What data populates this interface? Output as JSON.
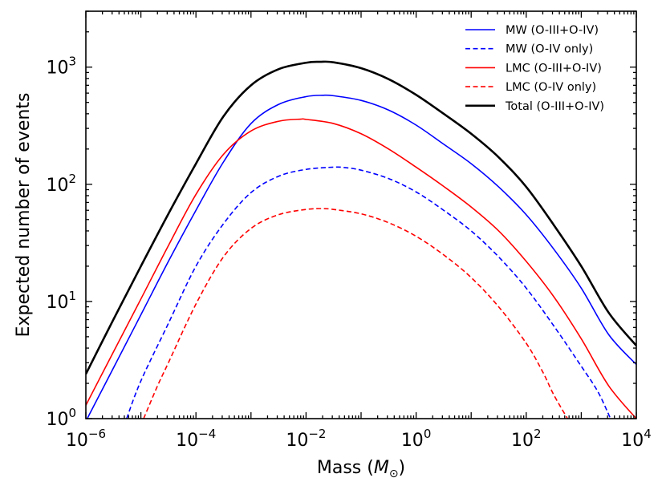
{
  "chart_data": {
    "type": "line",
    "xscale": "log",
    "yscale": "log",
    "xlabel_main": "Mass (",
    "xlabel_symbol": "M",
    "xlabel_sub": "⊙",
    "xlabel_close": ")",
    "ylabel": "Expected number of events",
    "xlim": [
      1e-06,
      10000.0
    ],
    "ylim": [
      1,
      3000
    ],
    "x_ticks": [
      {
        "value": 1e-06,
        "base": "10",
        "exp": "−6"
      },
      {
        "value": 0.0001,
        "base": "10",
        "exp": "−4"
      },
      {
        "value": 0.01,
        "base": "10",
        "exp": "−2"
      },
      {
        "value": 1.0,
        "base": "10",
        "exp": "0"
      },
      {
        "value": 100.0,
        "base": "10",
        "exp": "2"
      },
      {
        "value": 10000.0,
        "base": "10",
        "exp": "4"
      }
    ],
    "y_ticks": [
      {
        "value": 1,
        "base": "10",
        "exp": "0"
      },
      {
        "value": 10,
        "base": "10",
        "exp": "1"
      },
      {
        "value": 100,
        "base": "10",
        "exp": "2"
      },
      {
        "value": 1000,
        "base": "10",
        "exp": "3"
      }
    ],
    "legend_position": "top-right",
    "series": [
      {
        "name": "MW (O-III+O-IV)",
        "color": "#0000ff",
        "style": "solid",
        "width": 1.6,
        "x": [
          1e-06,
          3.16e-06,
          1e-05,
          3.16e-05,
          0.0001,
          0.000316,
          0.001,
          0.00316,
          0.01,
          0.02,
          0.0316,
          0.1,
          0.316,
          1,
          3.16,
          10,
          31.6,
          100,
          316,
          1000,
          3162,
          10000.0
        ],
        "y": [
          0.95,
          2.7,
          7.7,
          22,
          60,
          155,
          330,
          480,
          560,
          575,
          570,
          520,
          430,
          320,
          220,
          150,
          95,
          55,
          28,
          13,
          5.2,
          2.9
        ]
      },
      {
        "name": "MW (O-IV only)",
        "color": "#0000ff",
        "style": "dashed",
        "width": 1.6,
        "x": [
          5.5e-06,
          1e-05,
          3.16e-05,
          0.0001,
          0.000316,
          0.001,
          0.00316,
          0.01,
          0.0316,
          0.05,
          0.1,
          0.316,
          1,
          3.16,
          10,
          31.6,
          100,
          316,
          1000,
          2000,
          3400
        ],
        "y": [
          1.0,
          2.1,
          6.5,
          20,
          46,
          85,
          117,
          134,
          140,
          139,
          132,
          112,
          86,
          60,
          40,
          24,
          13,
          6.2,
          2.8,
          1.7,
          1.0
        ]
      },
      {
        "name": "LMC (O-III+O-IV)",
        "color": "#ff0000",
        "style": "solid",
        "width": 1.6,
        "x": [
          1e-06,
          3.16e-06,
          1e-05,
          3.16e-05,
          0.0001,
          0.000316,
          0.001,
          0.00316,
          0.008,
          0.01,
          0.0316,
          0.1,
          0.316,
          1,
          3.16,
          10,
          31.6,
          100,
          316,
          1000,
          3162,
          10000.0
        ],
        "y": [
          1.3,
          3.7,
          10.5,
          30,
          82,
          180,
          285,
          345,
          360,
          358,
          330,
          270,
          200,
          140,
          96,
          64,
          40,
          22,
          11,
          4.8,
          1.9,
          1.0
        ]
      },
      {
        "name": "LMC (O-IV only)",
        "color": "#ff0000",
        "style": "dashed",
        "width": 1.6,
        "x": [
          1.12e-05,
          2e-05,
          3.16e-05,
          0.0001,
          0.000316,
          0.001,
          0.00316,
          0.01,
          0.02,
          0.0316,
          0.1,
          0.316,
          1,
          3.16,
          10,
          31.6,
          100,
          200,
          316,
          600
        ],
        "y": [
          1.0,
          1.9,
          3.0,
          9.5,
          24,
          42,
          55,
          61,
          62,
          61,
          56,
          47,
          36,
          25,
          16,
          9,
          4.4,
          2.5,
          1.6,
          0.95
        ]
      },
      {
        "name": "Total (O-III+O-IV)",
        "color": "#000000",
        "style": "solid",
        "width": 2.6,
        "x": [
          1e-06,
          3.16e-06,
          1e-05,
          3.16e-05,
          0.0001,
          0.000316,
          0.001,
          0.00316,
          0.01,
          0.018,
          0.0316,
          0.1,
          0.316,
          1,
          3.16,
          10,
          31.6,
          100,
          316,
          1000,
          3162,
          10000.0
        ],
        "y": [
          2.4,
          7,
          20,
          56,
          150,
          380,
          700,
          960,
          1090,
          1110,
          1100,
          980,
          790,
          580,
          400,
          270,
          170,
          95,
          45,
          20,
          8,
          4.2
        ]
      }
    ]
  }
}
